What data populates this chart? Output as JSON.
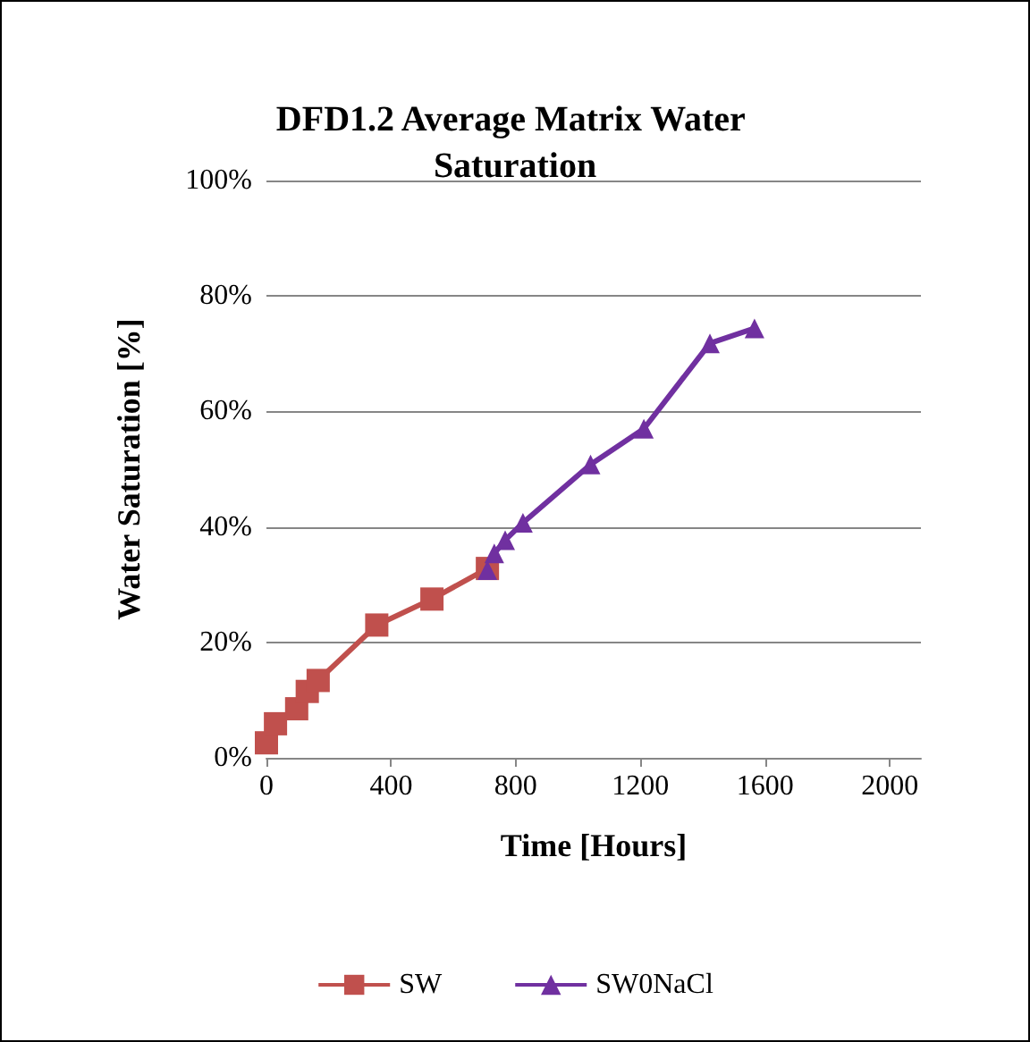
{
  "chart_data": {
    "type": "line",
    "title": "DFD1.2 Average Matrix Water Saturation",
    "xlabel": "Time [Hours]",
    "ylabel": "Water Saturation [%]",
    "xlim": [
      0,
      2100
    ],
    "xticks": [
      0,
      400,
      800,
      1200,
      1600,
      2000
    ],
    "ylim": [
      0,
      100
    ],
    "yticks": [
      {
        "value": 0,
        "label": "0%"
      },
      {
        "value": 20,
        "label": "20%"
      },
      {
        "value": 40,
        "label": "40%"
      },
      {
        "value": 60,
        "label": "60%"
      },
      {
        "value": 80,
        "label": "80%"
      },
      {
        "value": 100,
        "label": "100%"
      }
    ],
    "grid": "y",
    "legend": "bottom",
    "series": [
      {
        "name": "SW",
        "color": "#c0504d",
        "marker": "square",
        "x": [
          0,
          29,
          97,
          131,
          166,
          354,
          531,
          709
        ],
        "values": [
          2.6,
          5.9,
          8.5,
          11.5,
          13.4,
          23,
          27.5,
          32.8
        ]
      },
      {
        "name": "SW0NaCl",
        "color": "#7030a0",
        "marker": "triangle",
        "x": [
          709,
          731,
          766,
          823,
          1040,
          1211,
          1423,
          1566
        ],
        "values": [
          32.5,
          35.4,
          37.7,
          40.7,
          50.8,
          57,
          71.8,
          74.4
        ]
      }
    ]
  }
}
